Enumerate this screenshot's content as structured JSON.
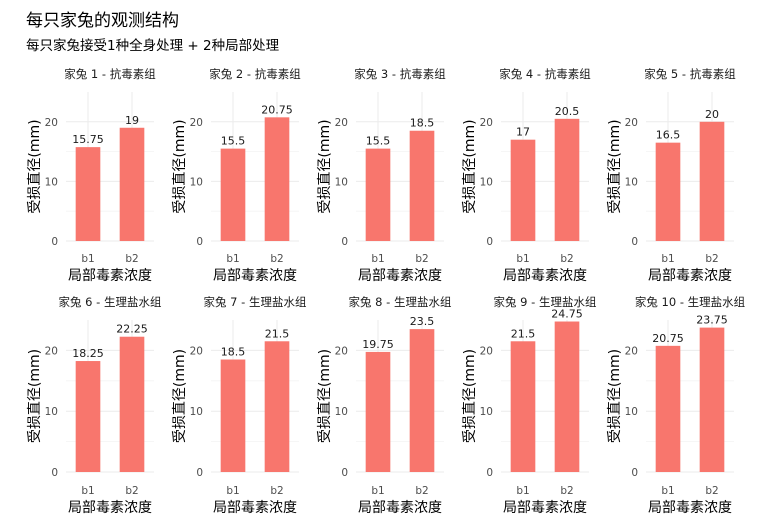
{
  "title": "每只家兔的观测结构",
  "subtitle": "每只家兔接受1种全身处理 + 2种局部处理",
  "chart_data": {
    "type": "bar",
    "layout": "facet-grid 2 rows x 5 columns",
    "ylabel": "受损直径(mm)",
    "xlabel": "局部毒素浓度",
    "categories": [
      "b1",
      "b2"
    ],
    "ylim": [
      0,
      25
    ],
    "yticks": [
      0,
      10,
      20
    ],
    "bar_color": "#F8766D",
    "grid": true,
    "panels": [
      {
        "title": "家兔 1 - 抗毒素组",
        "values": [
          15.75,
          19
        ],
        "labels": [
          "15.75",
          "19"
        ]
      },
      {
        "title": "家兔 2 - 抗毒素组",
        "values": [
          15.5,
          20.75
        ],
        "labels": [
          "15.5",
          "20.75"
        ]
      },
      {
        "title": "家兔 3 - 抗毒素组",
        "values": [
          15.5,
          18.5
        ],
        "labels": [
          "15.5",
          "18.5"
        ]
      },
      {
        "title": "家兔 4 - 抗毒素组",
        "values": [
          17,
          20.5
        ],
        "labels": [
          "17",
          "20.5"
        ]
      },
      {
        "title": "家兔 5 - 抗毒素组",
        "values": [
          16.5,
          20
        ],
        "labels": [
          "16.5",
          "20"
        ]
      },
      {
        "title": "家兔 6 - 生理盐水组",
        "values": [
          18.25,
          22.25
        ],
        "labels": [
          "18.25",
          "22.25"
        ]
      },
      {
        "title": "家兔 7 - 生理盐水组",
        "values": [
          18.5,
          21.5
        ],
        "labels": [
          "18.5",
          "21.5"
        ]
      },
      {
        "title": "家兔 8 - 生理盐水组",
        "values": [
          19.75,
          23.5
        ],
        "labels": [
          "19.75",
          "23.5"
        ]
      },
      {
        "title": "家兔 9 - 生理盐水组",
        "values": [
          21.5,
          24.75
        ],
        "labels": [
          "21.5",
          "24.75"
        ]
      },
      {
        "title": "家兔 10 - 生理盐水组",
        "values": [
          20.75,
          23.75
        ],
        "labels": [
          "20.75",
          "23.75"
        ]
      }
    ]
  }
}
